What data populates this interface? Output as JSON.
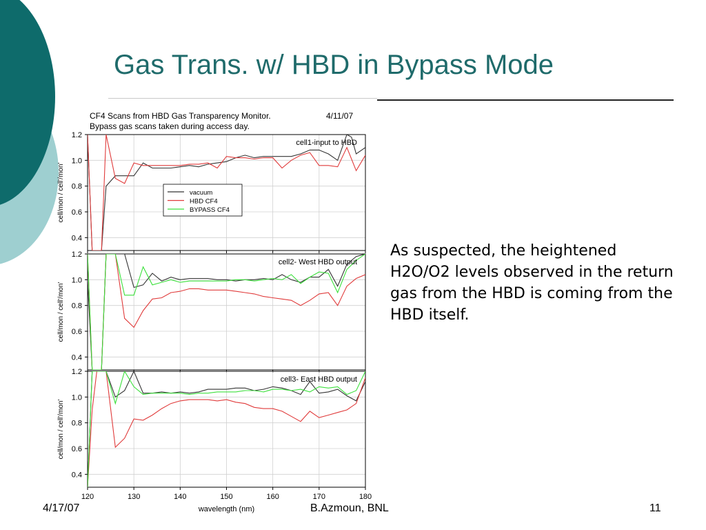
{
  "slide": {
    "title": "Gas Trans. w/ HBD in Bypass Mode",
    "body": "As suspected, the heightened H2O/O2 levels observed in the return gas from the HBD is coming from the HBD itself.",
    "footer_date": "4/17/07",
    "footer_author": "B.Azmoun, BNL",
    "page_number": "11",
    "colors": {
      "title": "#1f6b6b",
      "deco_dark": "#0e6b6b",
      "deco_light": "#9ecfd0"
    }
  },
  "chart_header": {
    "line1": "CF4  Scans from HBD Gas Transparency Monitor.",
    "date": "4/11/07",
    "line2": "Bypass gas scans taken during access day."
  },
  "chart_data": [
    {
      "type": "line",
      "panel_label": "cell1-input to HBD",
      "ylabel": "cell/mon / cell'/mon'",
      "xlim": [
        120,
        180
      ],
      "ylim": [
        0.3,
        1.2
      ],
      "yticks": [
        0.4,
        0.6,
        0.8,
        1.0,
        1.2
      ],
      "legend": [
        "vacuum",
        "HBD CF4",
        "BYPASS  CF4"
      ],
      "legend_position": "center-left",
      "series": [
        {
          "name": "vacuum",
          "color": "#333333",
          "x": [
            120,
            121,
            122,
            123,
            124,
            126,
            128,
            130,
            132,
            134,
            136,
            138,
            140,
            142,
            144,
            146,
            148,
            150,
            152,
            154,
            156,
            158,
            160,
            162,
            164,
            166,
            168,
            170,
            172,
            174,
            176,
            177,
            178,
            180
          ],
          "y": [
            1.2,
            0.3,
            0.3,
            0.3,
            0.8,
            0.88,
            0.88,
            0.88,
            0.98,
            0.94,
            0.94,
            0.94,
            0.95,
            0.96,
            0.95,
            0.97,
            0.98,
            0.99,
            1.02,
            1.04,
            1.02,
            1.03,
            1.03,
            1.03,
            1.03,
            1.05,
            1.08,
            1.08,
            1.05,
            1.0,
            1.2,
            1.18,
            1.05,
            1.1
          ]
        },
        {
          "name": "HBD CF4",
          "color": "#e03a3a",
          "x": [
            120,
            121,
            122,
            123,
            124,
            126,
            128,
            130,
            132,
            134,
            136,
            138,
            140,
            142,
            144,
            146,
            148,
            150,
            152,
            154,
            156,
            158,
            160,
            162,
            164,
            166,
            168,
            170,
            172,
            174,
            176,
            178,
            180
          ],
          "y": [
            1.2,
            0.3,
            0.3,
            0.3,
            1.2,
            0.86,
            0.82,
            0.98,
            0.96,
            0.96,
            0.96,
            0.96,
            0.96,
            0.97,
            0.97,
            0.98,
            0.94,
            1.03,
            1.02,
            1.02,
            1.01,
            1.02,
            1.02,
            0.94,
            1.0,
            1.04,
            1.06,
            0.96,
            0.96,
            0.95,
            1.1,
            0.92,
            1.04
          ]
        }
      ]
    },
    {
      "type": "line",
      "panel_label": "cell2- West HBD output",
      "ylabel": "cell/mon / cell'/mon'",
      "xlim": [
        120,
        180
      ],
      "ylim": [
        0.3,
        1.2
      ],
      "yticks": [
        0.4,
        0.6,
        0.8,
        1.0,
        1.2
      ],
      "series": [
        {
          "name": "vacuum",
          "color": "#333333",
          "x": [
            120,
            121,
            122,
            123,
            124,
            126,
            128,
            130,
            132,
            134,
            136,
            138,
            140,
            142,
            144,
            146,
            148,
            150,
            152,
            154,
            156,
            158,
            160,
            162,
            164,
            166,
            168,
            170,
            172,
            174,
            176,
            178,
            180
          ],
          "y": [
            1.0,
            0.3,
            0.3,
            0.3,
            1.2,
            1.2,
            1.2,
            0.94,
            0.96,
            1.05,
            0.99,
            1.02,
            1.0,
            1.01,
            1.01,
            1.01,
            1.0,
            1.0,
            0.99,
            1.0,
            1.0,
            1.01,
            1.0,
            1.04,
            1.0,
            0.98,
            1.02,
            1.02,
            1.08,
            0.95,
            1.12,
            1.18,
            1.2
          ]
        },
        {
          "name": "HBD CF4",
          "color": "#e03a3a",
          "x": [
            120,
            121,
            122,
            123,
            124,
            126,
            128,
            130,
            132,
            134,
            136,
            138,
            140,
            142,
            144,
            146,
            148,
            150,
            152,
            154,
            156,
            158,
            160,
            162,
            164,
            166,
            168,
            170,
            172,
            174,
            176,
            178,
            180
          ],
          "y": [
            1.2,
            0.3,
            0.3,
            0.3,
            1.2,
            1.2,
            0.7,
            0.63,
            0.76,
            0.85,
            0.86,
            0.9,
            0.91,
            0.93,
            0.93,
            0.92,
            0.92,
            0.92,
            0.91,
            0.9,
            0.89,
            0.87,
            0.86,
            0.85,
            0.84,
            0.8,
            0.84,
            0.89,
            0.9,
            0.8,
            0.95,
            1.01,
            1.04
          ]
        },
        {
          "name": "BYPASS  CF4",
          "color": "#3ce03c",
          "x": [
            120,
            121,
            122,
            123,
            124,
            126,
            128,
            130,
            132,
            134,
            136,
            138,
            140,
            142,
            144,
            146,
            148,
            150,
            152,
            154,
            156,
            158,
            160,
            162,
            164,
            166,
            168,
            170,
            172,
            174,
            176,
            178,
            180
          ],
          "y": [
            1.2,
            0.3,
            0.3,
            0.3,
            1.2,
            1.2,
            0.88,
            0.88,
            1.1,
            0.96,
            0.98,
            1.0,
            0.98,
            0.99,
            0.99,
            0.99,
            0.99,
            0.99,
            1.0,
            1.0,
            0.99,
            1.0,
            1.01,
            1.0,
            1.04,
            0.97,
            1.02,
            1.06,
            1.05,
            0.9,
            1.08,
            1.15,
            1.2
          ]
        }
      ]
    },
    {
      "type": "line",
      "panel_label": "cell3- East HBD output",
      "ylabel": "cell/mon / cell'/mon'",
      "xlabel": "wavelength (nm)",
      "xlim": [
        120,
        180
      ],
      "xticks": [
        120,
        130,
        140,
        150,
        160,
        170,
        180
      ],
      "ylim": [
        0.3,
        1.2
      ],
      "yticks": [
        0.4,
        0.6,
        0.8,
        1.0,
        1.2
      ],
      "series": [
        {
          "name": "vacuum",
          "color": "#333333",
          "x": [
            120,
            121,
            122,
            123,
            124,
            126,
            128,
            130,
            132,
            134,
            136,
            138,
            140,
            142,
            144,
            146,
            148,
            150,
            152,
            154,
            156,
            158,
            160,
            162,
            164,
            166,
            168,
            170,
            172,
            174,
            176,
            178,
            180
          ],
          "y": [
            0.3,
            1.2,
            1.2,
            1.2,
            1.2,
            1.0,
            1.05,
            1.2,
            1.03,
            1.03,
            1.04,
            1.03,
            1.04,
            1.03,
            1.04,
            1.06,
            1.06,
            1.06,
            1.07,
            1.07,
            1.05,
            1.06,
            1.08,
            1.07,
            1.05,
            1.02,
            1.12,
            1.03,
            1.04,
            1.06,
            1.01,
            0.97,
            1.12
          ]
        },
        {
          "name": "HBD CF4",
          "color": "#e03a3a",
          "x": [
            120,
            121,
            122,
            123,
            124,
            126,
            128,
            130,
            132,
            134,
            136,
            138,
            140,
            142,
            144,
            146,
            148,
            150,
            152,
            154,
            156,
            158,
            160,
            162,
            164,
            166,
            168,
            170,
            172,
            174,
            176,
            178,
            180
          ],
          "y": [
            0.3,
            0.9,
            1.2,
            1.2,
            1.2,
            0.61,
            0.68,
            0.83,
            0.82,
            0.86,
            0.91,
            0.95,
            0.97,
            0.98,
            0.98,
            0.98,
            0.97,
            0.98,
            0.96,
            0.95,
            0.92,
            0.91,
            0.91,
            0.89,
            0.85,
            0.81,
            0.89,
            0.84,
            0.86,
            0.88,
            0.9,
            0.95,
            1.15
          ]
        },
        {
          "name": "BYPASS  CF4",
          "color": "#3ce03c",
          "x": [
            120,
            121,
            122,
            123,
            124,
            126,
            128,
            130,
            132,
            134,
            136,
            138,
            140,
            142,
            144,
            146,
            148,
            150,
            152,
            154,
            156,
            158,
            160,
            162,
            164,
            166,
            168,
            170,
            172,
            174,
            176,
            178,
            180
          ],
          "y": [
            0.3,
            1.2,
            1.2,
            1.2,
            1.2,
            0.95,
            1.2,
            1.08,
            1.02,
            1.03,
            1.03,
            1.03,
            1.03,
            1.02,
            1.03,
            1.03,
            1.04,
            1.04,
            1.04,
            1.05,
            1.05,
            1.04,
            1.06,
            1.06,
            1.05,
            1.06,
            1.04,
            1.08,
            1.07,
            1.08,
            1.02,
            1.05,
            1.2
          ]
        }
      ]
    }
  ]
}
